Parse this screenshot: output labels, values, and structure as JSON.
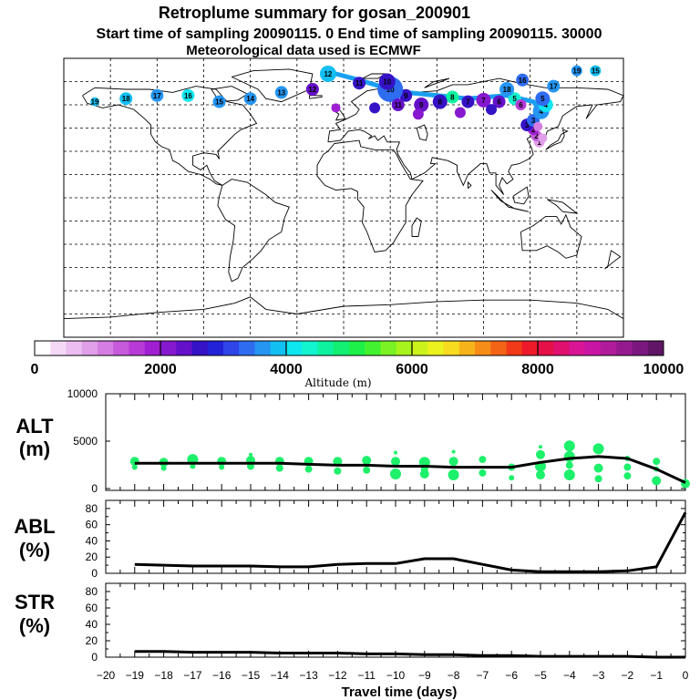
{
  "header": {
    "title": "Retroplume summary for gosan_200901",
    "subtitle": "Start time of sampling 20090115.    0     End time of sampling 20090115. 30000",
    "met": "Meteorological data used is ECMWF"
  },
  "colorbar": {
    "ticks": [
      "0",
      "2000",
      "4000",
      "6000",
      "8000",
      "10000"
    ],
    "label": "Altitude  (m)",
    "colors": [
      "#ffffff",
      "#f4d8f6",
      "#ecbdf0",
      "#e19ee9",
      "#d57de2",
      "#c65adb",
      "#b73ad6",
      "#a11fd3",
      "#8619cf",
      "#6511c9",
      "#3512c6",
      "#2222d8",
      "#2f45e8",
      "#2e6cf0",
      "#2596f2",
      "#12bff2",
      "#0ee7ef",
      "#12f3cf",
      "#0ef2a0",
      "#12ef72",
      "#1df048",
      "#43f22f",
      "#7af223",
      "#a9f31d",
      "#ccf21b",
      "#ecf21e",
      "#f6db1e",
      "#f6b41a",
      "#f68d19",
      "#f46417",
      "#f13a18",
      "#ee1a2a",
      "#e61048",
      "#e01070",
      "#d91596",
      "#c815a3",
      "#b01b9c",
      "#951a90",
      "#7a1880",
      "#601566"
    ]
  },
  "map": {
    "points": [
      {
        "lon": 126.2,
        "lat": 33.3,
        "alt": 100,
        "r": 5,
        "label": ""
      },
      {
        "lon": 125.8,
        "lat": 36.0,
        "alt": 800,
        "r": 6,
        "label": "1"
      },
      {
        "lon": 124.0,
        "lat": 40.0,
        "alt": 1400,
        "r": 6,
        "label": "2"
      },
      {
        "lon": 122.0,
        "lat": 44.0,
        "alt": 1800,
        "r": 6,
        "label": "2"
      },
      {
        "lon": 118.0,
        "lat": 47.0,
        "alt": 2600,
        "r": 7,
        "label": "3"
      },
      {
        "lon": 122.0,
        "lat": 50.0,
        "alt": 3400,
        "r": 7,
        "label": "3"
      },
      {
        "lon": 127.0,
        "lat": 56.0,
        "alt": 3600,
        "r": 9,
        "label": "4"
      },
      {
        "lon": 130.0,
        "lat": 60.0,
        "alt": 4000,
        "r": 8,
        "label": "4"
      },
      {
        "lon": 128.0,
        "lat": 64.0,
        "alt": 3300,
        "r": 8,
        "label": "5"
      },
      {
        "lon": 110.0,
        "lat": 64.0,
        "alt": 4300,
        "r": 7,
        "label": "5"
      },
      {
        "lon": 114.0,
        "lat": 60.0,
        "alt": 1500,
        "r": 6,
        "label": "6"
      },
      {
        "lon": 100.0,
        "lat": 62.0,
        "alt": 2400,
        "r": 7,
        "label": "6"
      },
      {
        "lon": 90.0,
        "lat": 63.0,
        "alt": 2200,
        "r": 8,
        "label": "7"
      },
      {
        "lon": 80.0,
        "lat": 62.0,
        "alt": 2500,
        "r": 7,
        "label": "7"
      },
      {
        "lon": 70.0,
        "lat": 65.0,
        "alt": 4600,
        "r": 7,
        "label": "8"
      },
      {
        "lon": 62.0,
        "lat": 62.0,
        "alt": 2500,
        "r": 8,
        "label": "8"
      },
      {
        "lon": 50.0,
        "lat": 60.0,
        "alt": 2400,
        "r": 8,
        "label": "9"
      },
      {
        "lon": 40.0,
        "lat": 66.0,
        "alt": 2600,
        "r": 7,
        "label": "9"
      },
      {
        "lon": 30.0,
        "lat": 70.0,
        "alt": 3300,
        "r": 14,
        "label": "10"
      },
      {
        "lon": 28.0,
        "lat": 75.0,
        "alt": 2500,
        "r": 9,
        "label": "10"
      },
      {
        "lon": 10.0,
        "lat": 74.0,
        "alt": 2700,
        "r": 7,
        "label": "11"
      },
      {
        "lon": 35.0,
        "lat": 60.0,
        "alt": 2300,
        "r": 7,
        "label": "11"
      },
      {
        "lon": -10.0,
        "lat": 80.0,
        "alt": 3800,
        "r": 9,
        "label": "12"
      },
      {
        "lon": -20.0,
        "lat": 70.0,
        "alt": 2400,
        "r": 7,
        "label": "12"
      },
      {
        "lon": -40.0,
        "lat": 68.0,
        "alt": 3500,
        "r": 7,
        "label": "13"
      },
      {
        "lon": -60.0,
        "lat": 64.0,
        "alt": 3600,
        "r": 7,
        "label": "14"
      },
      {
        "lon": -80.0,
        "lat": 62.0,
        "alt": 3700,
        "r": 7,
        "label": "15"
      },
      {
        "lon": -100.0,
        "lat": 66.0,
        "alt": 4100,
        "r": 7,
        "label": "16"
      },
      {
        "lon": -120.0,
        "lat": 66.0,
        "alt": 3500,
        "r": 7,
        "label": "17"
      },
      {
        "lon": -140.0,
        "lat": 64.0,
        "alt": 3800,
        "r": 7,
        "label": "18"
      },
      {
        "lon": -160.0,
        "lat": 62.0,
        "alt": 3900,
        "r": 5,
        "label": "19"
      },
      {
        "lon": 20.0,
        "lat": 58.0,
        "alt": 2600,
        "r": 6,
        "label": ""
      },
      {
        "lon": 48.0,
        "lat": 54.0,
        "alt": 2100,
        "r": 6,
        "label": ""
      },
      {
        "lon": 75.0,
        "lat": 55.0,
        "alt": 2000,
        "r": 6,
        "label": ""
      },
      {
        "lon": 95.0,
        "lat": 57.0,
        "alt": 2500,
        "r": 6,
        "label": ""
      },
      {
        "lon": 105.0,
        "lat": 70.0,
        "alt": 3700,
        "r": 8,
        "label": "18"
      },
      {
        "lon": 115.0,
        "lat": 76.0,
        "alt": 3400,
        "r": 7,
        "label": "16"
      },
      {
        "lon": 135.0,
        "lat": 72.0,
        "alt": 3600,
        "r": 7,
        "label": "17"
      },
      {
        "lon": 150.0,
        "lat": 82.0,
        "alt": 3700,
        "r": 6,
        "label": "19"
      },
      {
        "lon": 162.0,
        "lat": 82.0,
        "alt": 3800,
        "r": 6,
        "label": "15"
      },
      {
        "lon": -5.0,
        "lat": 58.0,
        "alt": 1800,
        "r": 5,
        "label": ""
      },
      {
        "lon": 125.0,
        "lat": 46.0,
        "alt": 1100,
        "r": 5,
        "label": ""
      },
      {
        "lon": 128.0,
        "lat": 38.5,
        "alt": 900,
        "r": 5,
        "label": ""
      }
    ],
    "track": [
      [
        126.2,
        33.3
      ],
      [
        124,
        40
      ],
      [
        122,
        44
      ],
      [
        120,
        48
      ],
      [
        122,
        52
      ],
      [
        127,
        56
      ],
      [
        122,
        62
      ],
      [
        105,
        66
      ],
      [
        80,
        64
      ],
      [
        60,
        66
      ],
      [
        40,
        68
      ],
      [
        30,
        70
      ],
      [
        10,
        76
      ],
      [
        -5,
        80
      ]
    ]
  },
  "chart_data": [
    {
      "type": "line",
      "name": "ALT",
      "ylabel": "ALT\n(m)",
      "ylim": [
        0,
        10000
      ],
      "yticks": [
        "0",
        "5000",
        "10000"
      ],
      "x": [
        -19,
        -18,
        -17,
        -16,
        -15,
        -14,
        -13,
        -12,
        -11,
        -10,
        -9,
        -8,
        -7,
        -6,
        -5,
        -4,
        -3,
        -2,
        -1,
        0
      ],
      "values": [
        2800,
        2800,
        2800,
        2800,
        2800,
        2800,
        2700,
        2600,
        2600,
        2500,
        2500,
        2400,
        2400,
        2400,
        2900,
        3300,
        3500,
        3300,
        2200,
        800
      ],
      "scatter": [
        [
          -19,
          3000,
          5
        ],
        [
          -19,
          2400,
          3
        ],
        [
          -18,
          2900,
          5
        ],
        [
          -18,
          2300,
          3
        ],
        [
          -17,
          3200,
          6
        ],
        [
          -17,
          2500,
          3
        ],
        [
          -16,
          3000,
          5
        ],
        [
          -16,
          2400,
          3
        ],
        [
          -15,
          3100,
          5
        ],
        [
          -15,
          2500,
          4
        ],
        [
          -15,
          3700,
          2
        ],
        [
          -14,
          3000,
          5
        ],
        [
          -14,
          2300,
          4
        ],
        [
          -13,
          3000,
          5
        ],
        [
          -13,
          2200,
          4
        ],
        [
          -12,
          3000,
          5
        ],
        [
          -12,
          2000,
          4
        ],
        [
          -11,
          3100,
          5
        ],
        [
          -11,
          2100,
          4
        ],
        [
          -10,
          3000,
          5
        ],
        [
          -10,
          1700,
          6
        ],
        [
          -10,
          3900,
          2
        ],
        [
          -9,
          2900,
          6
        ],
        [
          -9,
          1700,
          5
        ],
        [
          -9,
          2200,
          4
        ],
        [
          -8,
          3000,
          5
        ],
        [
          -8,
          1600,
          6
        ],
        [
          -8,
          4000,
          2
        ],
        [
          -7,
          3200,
          4
        ],
        [
          -7,
          1800,
          4
        ],
        [
          -6,
          2400,
          4
        ],
        [
          -6,
          1300,
          3
        ],
        [
          -5,
          3700,
          5
        ],
        [
          -5,
          2500,
          6
        ],
        [
          -5,
          1600,
          5
        ],
        [
          -5,
          4500,
          2
        ],
        [
          -4,
          4600,
          6
        ],
        [
          -4,
          3500,
          6
        ],
        [
          -4,
          1600,
          6
        ],
        [
          -4,
          2600,
          4
        ],
        [
          -3,
          4300,
          6
        ],
        [
          -3,
          2300,
          5
        ],
        [
          -3,
          1200,
          4
        ],
        [
          -2,
          2400,
          4
        ],
        [
          -2,
          1500,
          4
        ],
        [
          -2,
          3300,
          3
        ],
        [
          -1,
          3000,
          4
        ],
        [
          -1,
          1000,
          5
        ],
        [
          -1,
          2200,
          3
        ],
        [
          0,
          700,
          5
        ],
        [
          0,
          900,
          3
        ]
      ]
    },
    {
      "type": "line",
      "name": "ABL",
      "ylabel": "ABL\n(%)",
      "ylim": [
        0,
        90
      ],
      "yticks": [
        "0",
        "20",
        "40",
        "60",
        "80"
      ],
      "x": [
        -19,
        -18,
        -17,
        -16,
        -15,
        -14,
        -13,
        -12,
        -11,
        -10,
        -9,
        -8,
        -7,
        -6,
        -5,
        -4,
        -3,
        -2,
        -1,
        0
      ],
      "values": [
        11,
        10,
        9,
        9,
        9,
        8,
        8,
        11,
        12,
        12,
        18,
        18,
        11,
        4,
        2,
        2,
        2,
        3,
        8,
        75
      ]
    },
    {
      "type": "line",
      "name": "STR",
      "ylabel": "STR\n(%)",
      "ylim": [
        0,
        90
      ],
      "yticks": [
        "0",
        "20",
        "40",
        "60",
        "80"
      ],
      "x": [
        -19,
        -18,
        -17,
        -16,
        -15,
        -14,
        -13,
        -12,
        -11,
        -10,
        -9,
        -8,
        -7,
        -6,
        -5,
        -4,
        -3,
        -2,
        -1,
        0
      ],
      "values": [
        7,
        7,
        6,
        6,
        6,
        5,
        5,
        5,
        4,
        4,
        3,
        3,
        2,
        2,
        1,
        1,
        1,
        1,
        0,
        0
      ]
    }
  ],
  "xaxis": {
    "label": "Travel time (days)",
    "ticks": [
      "−20",
      "−19",
      "−18",
      "−17",
      "−16",
      "−15",
      "−14",
      "−13",
      "−12",
      "−11",
      "−10",
      "−9",
      "−8",
      "−7",
      "−6",
      "−5",
      "−4",
      "−3",
      "−2",
      "−1",
      "0"
    ]
  }
}
